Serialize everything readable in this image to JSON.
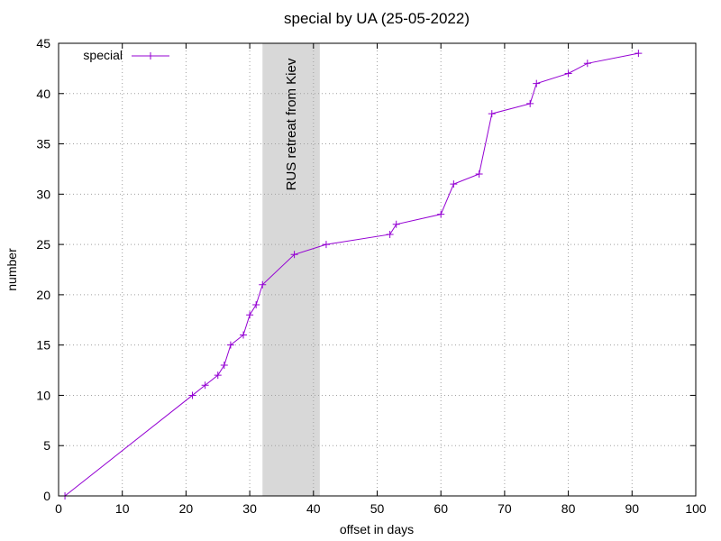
{
  "chart_data": {
    "type": "line",
    "title": "special by UA (25-05-2022)",
    "xlabel": "offset in days",
    "ylabel": "number",
    "xlim": [
      0,
      100
    ],
    "ylim": [
      0,
      45
    ],
    "xticks": [
      0,
      10,
      20,
      30,
      40,
      50,
      60,
      70,
      80,
      90,
      100
    ],
    "yticks": [
      0,
      5,
      10,
      15,
      20,
      25,
      30,
      35,
      40,
      45
    ],
    "grid": true,
    "legend": "top-left",
    "series": [
      {
        "name": "special",
        "color": "#9400d3",
        "x": [
          1,
          21,
          23,
          25,
          26,
          27,
          29,
          30,
          31,
          32,
          37,
          42,
          52,
          53,
          60,
          62,
          66,
          68,
          74,
          75,
          80,
          83,
          91
        ],
        "y": [
          0,
          10,
          11,
          12,
          13,
          15,
          16,
          18,
          19,
          21,
          24,
          25,
          26,
          27,
          28,
          31,
          32,
          38,
          39,
          41,
          42,
          43,
          44
        ]
      }
    ],
    "bands": [
      {
        "x_start": 32,
        "x_end": 41,
        "label": "RUS retreat from Kiev",
        "color": "#d8d8d8"
      }
    ]
  }
}
